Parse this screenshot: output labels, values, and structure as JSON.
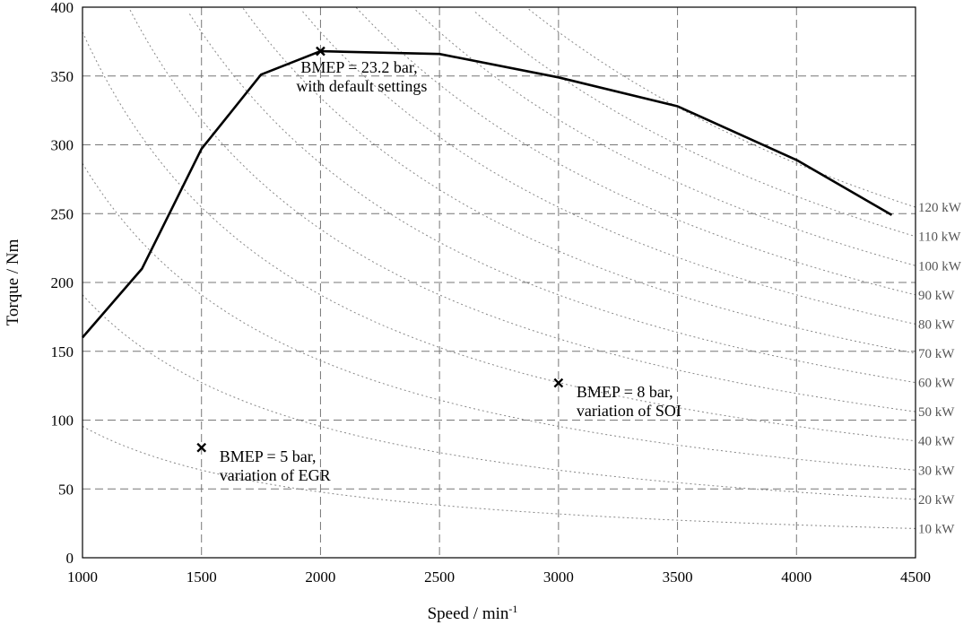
{
  "chart_data": {
    "type": "line",
    "xlabel": "Speed / min",
    "xlabel_superscript": "-1",
    "ylabel": "Torque / Nm",
    "xlim": [
      1000,
      4500
    ],
    "ylim": [
      0,
      400
    ],
    "xticks": [
      1000,
      1500,
      2000,
      2500,
      3000,
      3500,
      4000,
      4500
    ],
    "yticks": [
      0,
      50,
      100,
      150,
      200,
      250,
      300,
      350,
      400
    ],
    "grid": true,
    "full_load_curve": {
      "x": [
        1000,
        1250,
        1500,
        1750,
        2000,
        2500,
        3000,
        3500,
        4000,
        4400
      ],
      "y": [
        160,
        210,
        297,
        351,
        368,
        366,
        349,
        328,
        289,
        249
      ]
    },
    "power_isolines_kW": [
      10,
      20,
      30,
      40,
      50,
      60,
      70,
      80,
      90,
      100,
      110,
      120
    ],
    "power_isoline_labels": [
      "10 kW",
      "20 kW",
      "30 kW",
      "40 kW",
      "50 kW",
      "60 kW",
      "70 kW",
      "80 kW",
      "90 kW",
      "100 kW",
      "110 kW",
      "120 kW"
    ],
    "points": [
      {
        "x": 2000,
        "y": 368,
        "label_line1": "BMEP = 23.2 bar,",
        "label_line2": "with default settings"
      },
      {
        "x": 3000,
        "y": 127,
        "label_line1": "BMEP = 8 bar,",
        "label_line2": "variation of SOI"
      },
      {
        "x": 1500,
        "y": 80,
        "label_line1": "BMEP = 5 bar,",
        "label_line2": "variation of EGR"
      }
    ]
  }
}
